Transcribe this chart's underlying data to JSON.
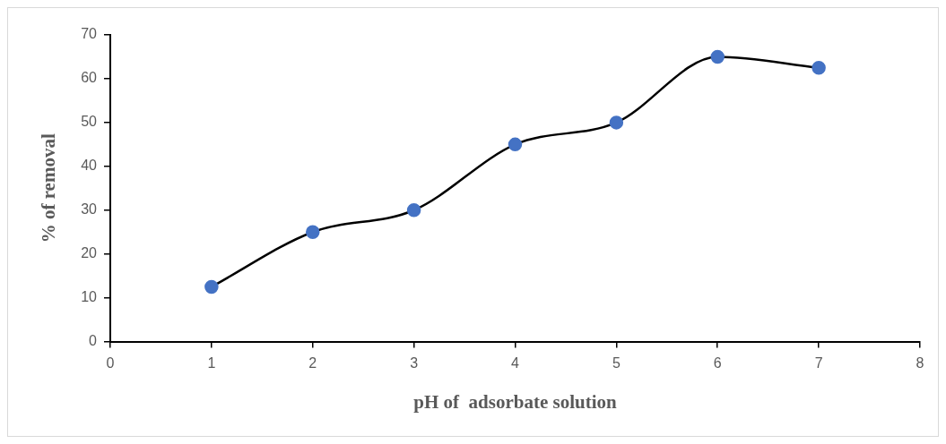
{
  "chart_data": {
    "type": "line",
    "xlabel": "pH of  adsorbate solution",
    "ylabel": "% of removal",
    "x": [
      1,
      2,
      3,
      4,
      5,
      6,
      7
    ],
    "series": [
      {
        "color": "#4472c4",
        "values": [
          12.5,
          25,
          30,
          45,
          50,
          65,
          62.5
        ]
      }
    ],
    "xlim": [
      0,
      8
    ],
    "xticks": [
      0,
      1,
      2,
      3,
      4,
      5,
      6,
      7,
      8
    ],
    "ylim": [
      0,
      70
    ],
    "yticks": [
      0,
      10,
      20,
      30,
      40,
      50,
      60,
      70
    ],
    "grid": false,
    "legend": false,
    "marker": "circle",
    "line_style": "solid"
  }
}
